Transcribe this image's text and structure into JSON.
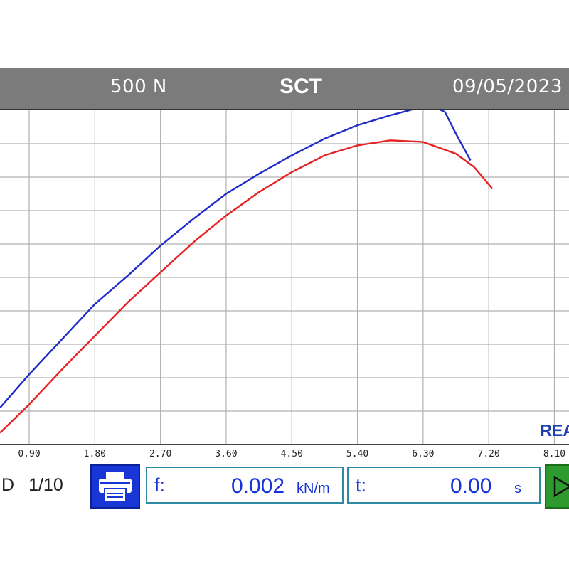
{
  "header": {
    "force": "500 N",
    "title": "SCT",
    "date": "09/05/2023"
  },
  "status": {
    "live_label": "REAL"
  },
  "footer": {
    "page_prefix": "D",
    "page": "1/10",
    "print_icon": "printer-icon",
    "play_icon": "play-icon",
    "force_field": {
      "label": "f:",
      "value": "0.002",
      "unit": "kN/m"
    },
    "time_field": {
      "label": "t:",
      "value": "0.00",
      "unit": "s"
    }
  },
  "colors": {
    "header_bg": "#7b7b7b",
    "series_blue": "#1f2bc8",
    "series_red": "#e62222",
    "accent_text": "#1632d8",
    "grid": "#b0b0b0",
    "print_button": "#1835d6",
    "play_button": "#2c9a2c"
  },
  "chart_data": {
    "type": "line",
    "x_ticks": [
      "0.90",
      "1.80",
      "2.70",
      "3.60",
      "4.50",
      "5.40",
      "6.30",
      "7.20",
      "8.10"
    ],
    "xlim": [
      0.5,
      8.3
    ],
    "ylim": [
      0,
      10
    ],
    "grid": true,
    "series": [
      {
        "color": "#1f2bc8",
        "points": [
          [
            0.5,
            1.1
          ],
          [
            0.9,
            2.1
          ],
          [
            1.35,
            3.15
          ],
          [
            1.8,
            4.2
          ],
          [
            2.25,
            5.05
          ],
          [
            2.7,
            5.95
          ],
          [
            3.15,
            6.75
          ],
          [
            3.6,
            7.5
          ],
          [
            4.05,
            8.1
          ],
          [
            4.5,
            8.65
          ],
          [
            4.95,
            9.15
          ],
          [
            5.4,
            9.55
          ],
          [
            5.85,
            9.85
          ],
          [
            6.2,
            10.05
          ],
          [
            6.5,
            10.05
          ],
          [
            6.6,
            9.95
          ],
          [
            6.75,
            9.3
          ],
          [
            6.95,
            8.5
          ]
        ]
      },
      {
        "color": "#e62222",
        "points": [
          [
            0.5,
            0.35
          ],
          [
            0.9,
            1.2
          ],
          [
            1.35,
            2.25
          ],
          [
            1.8,
            3.25
          ],
          [
            2.25,
            4.25
          ],
          [
            2.7,
            5.15
          ],
          [
            3.15,
            6.05
          ],
          [
            3.6,
            6.85
          ],
          [
            4.05,
            7.55
          ],
          [
            4.5,
            8.15
          ],
          [
            4.95,
            8.65
          ],
          [
            5.4,
            8.95
          ],
          [
            5.85,
            9.1
          ],
          [
            6.3,
            9.05
          ],
          [
            6.75,
            8.7
          ],
          [
            7.0,
            8.3
          ],
          [
            7.25,
            7.65
          ]
        ]
      }
    ]
  }
}
